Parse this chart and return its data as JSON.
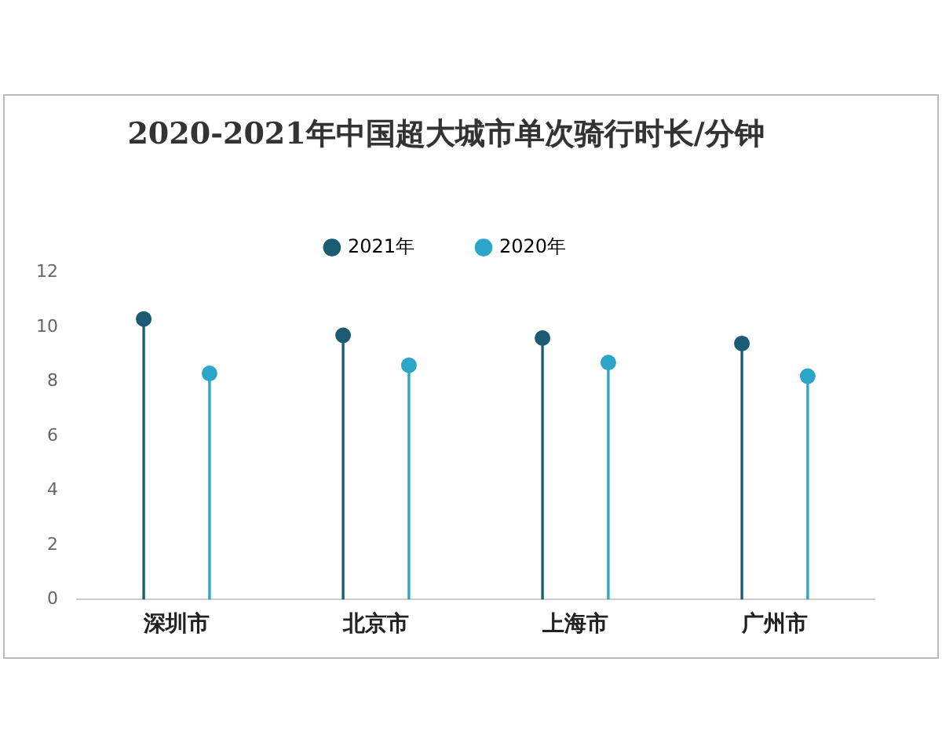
{
  "chart_data": {
    "type": "lollipop",
    "title": "2020-2021年中国超大城市单次骑行时长/分钟",
    "categories": [
      "深圳市",
      "北京市",
      "上海市",
      "广州市"
    ],
    "series": [
      {
        "name": "2021年",
        "color": "#1b5c74",
        "values": [
          10.3,
          9.7,
          9.6,
          9.4
        ]
      },
      {
        "name": "2020年",
        "color": "#2ba6c9",
        "values": [
          8.3,
          8.6,
          8.7,
          8.2
        ]
      }
    ],
    "ylim": [
      0,
      12
    ],
    "yticks": [
      0,
      2,
      4,
      6,
      8,
      10,
      12
    ],
    "grid": false,
    "legend": "top",
    "marker": "circle"
  }
}
